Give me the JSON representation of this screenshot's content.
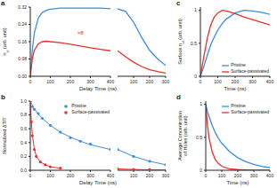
{
  "chart_data": [
    {
      "panel_label": "a",
      "type": "line",
      "ylabel": [
        [
          {
            "text": "n"
          },
          {
            "text": "cl",
            "sub": true
          },
          {
            "text": " (arb. unit)"
          }
        ]
      ],
      "xlabel": "Delay Time (ns)",
      "ylim": [
        0,
        0.32
      ],
      "yticks": [
        {
          "value": 0,
          "label": "0.00"
        },
        {
          "value": 0.08,
          "label": "0.08"
        },
        {
          "value": 0.16,
          "label": "0.16"
        },
        {
          "value": 0.24,
          "label": "0.24"
        },
        {
          "value": 0.32,
          "label": "0.32"
        }
      ],
      "segments": [
        {
          "xlim": [
            0,
            400
          ],
          "xticks": [
            0,
            100,
            200,
            300,
            400
          ]
        },
        {
          "xlim": [
            0,
            300
          ],
          "xticks": [
            100,
            200,
            300
          ]
        }
      ],
      "series": [
        {
          "name": "Pristine",
          "color": "#3b8ee0",
          "segments": [
            {
              "x": [
                0,
                10,
                20,
                40,
                60,
                80,
                100,
                150,
                200,
                250,
                300,
                350,
                400
              ],
              "values": [
                0,
                0.12,
                0.2,
                0.27,
                0.295,
                0.305,
                0.31,
                0.315,
                0.315,
                0.315,
                0.315,
                0.315,
                0.312
              ]
            },
            {
              "x": [
                0,
                50,
                100,
                150,
                200,
                250,
                300
              ],
              "values": [
                0.312,
                0.3,
                0.25,
                0.18,
                0.12,
                0.08,
                0.05
              ]
            }
          ]
        },
        {
          "name": "Surface-passivated",
          "color": "#e8312a",
          "segments": [
            {
              "x": [
                0,
                10,
                20,
                40,
                60,
                80,
                100,
                150,
                200,
                250,
                300,
                350,
                400
              ],
              "values": [
                0,
                0.08,
                0.12,
                0.15,
                0.16,
                0.162,
                0.16,
                0.155,
                0.148,
                0.14,
                0.132,
                0.125,
                0.118
              ]
            },
            {
              "x": [
                0,
                50,
                100,
                150,
                200,
                250,
                300
              ],
              "values": [
                0.118,
                0.09,
                0.065,
                0.045,
                0.03,
                0.022,
                0.015
              ]
            }
          ]
        }
      ],
      "annotations": [
        {
          "text": "×8",
          "x": 250,
          "y": 0.2,
          "color": "#e8312a"
        }
      ]
    },
    {
      "panel_label": "b",
      "type": "scatter",
      "ylabel": [
        [
          {
            "text": "Normalized ΔT/T"
          }
        ]
      ],
      "xlabel": "Delay Time (ns)",
      "ylim": [
        0,
        1
      ],
      "yticks": [
        {
          "value": 0,
          "label": "0.0"
        },
        {
          "value": 0.2,
          "label": "0.2"
        },
        {
          "value": 0.4,
          "label": "0.4"
        },
        {
          "value": 0.6,
          "label": "0.6"
        },
        {
          "value": 0.8,
          "label": "0.8"
        },
        {
          "value": 1,
          "label": "1.0"
        }
      ],
      "segments": [
        {
          "xlim": [
            0,
            400
          ],
          "xticks": [
            0,
            100,
            200,
            300,
            400
          ]
        },
        {
          "xlim": [
            0,
            300
          ],
          "xticks": [
            100,
            200,
            300
          ]
        }
      ],
      "legend": "upper right",
      "series": [
        {
          "name": "Pristine",
          "color": "#3b8ee0",
          "marker": "circle",
          "segments": [
            {
              "x": [
                0,
                10,
                20,
                40,
                60,
                100,
                150,
                200,
                250,
                300,
                400
              ],
              "values": [
                1,
                0.92,
                0.88,
                0.82,
                0.75,
                0.65,
                0.55,
                0.47,
                0.42,
                0.38,
                0.3
              ],
              "fit": [
                1,
                0.94,
                0.89,
                0.81,
                0.75,
                0.65,
                0.55,
                0.48,
                0.42,
                0.37,
                0.3
              ]
            },
            {
              "x": [
                0,
                100,
                200,
                300
              ],
              "values": [
                0.3,
                0.2,
                0.13,
                0.08
              ],
              "fit": [
                0.3,
                0.2,
                0.13,
                0.08
              ]
            }
          ]
        },
        {
          "name": "Surface-passivated",
          "color": "#e8312a",
          "marker": "circle",
          "segments": [
            {
              "x": [
                0,
                5,
                10,
                20,
                30,
                50,
                75,
                100,
                150
              ],
              "values": [
                1,
                0.7,
                0.5,
                0.3,
                0.2,
                0.12,
                0.08,
                0.05,
                0.03
              ],
              "fit": [
                1,
                0.72,
                0.52,
                0.31,
                0.2,
                0.12,
                0.08,
                0.05,
                0.03
              ]
            },
            {
              "x": [
                0,
                100,
                200,
                300
              ],
              "values": [
                0.02,
                0.01,
                0.01,
                0
              ],
              "fit": [
                0.02,
                0.012,
                0.006,
                0.003
              ]
            }
          ]
        }
      ]
    },
    {
      "panel_label": "c",
      "type": "line",
      "ylabel": [
        [
          {
            "text": "Surface n"
          },
          {
            "text": "cl",
            "sub": true
          },
          {
            "text": " (arb. unit)"
          }
        ]
      ],
      "xlabel": "Time (ns)",
      "ylim": [
        0,
        1.05
      ],
      "yticks": [
        0,
        0.5,
        1
      ],
      "xlim": [
        0,
        400
      ],
      "xticks": [
        0,
        100,
        200,
        300,
        400
      ],
      "legend": "lower right",
      "series": [
        {
          "name": "Pristine",
          "color": "#3b8ee0",
          "x": [
            0,
            20,
            40,
            60,
            80,
            100,
            125,
            150,
            200,
            250,
            300,
            350,
            400
          ],
          "values": [
            0,
            0.15,
            0.32,
            0.48,
            0.6,
            0.7,
            0.8,
            0.87,
            0.96,
            1,
            0.99,
            0.97,
            0.94
          ]
        },
        {
          "name": "Surface-passivated",
          "color": "#e8312a",
          "x": [
            0,
            20,
            40,
            60,
            80,
            100,
            125,
            150,
            200,
            250,
            300,
            350,
            400
          ],
          "values": [
            0,
            0.3,
            0.58,
            0.78,
            0.9,
            0.96,
            1,
            0.99,
            0.95,
            0.9,
            0.86,
            0.82,
            0.78
          ]
        }
      ]
    },
    {
      "panel_label": "d",
      "type": "line",
      "ylabel": [
        [
          {
            "text": "Average Concentration"
          }
        ],
        [
          {
            "text": "of Holes (arb. unit)"
          }
        ]
      ],
      "xlabel": "Time (ns)",
      "ylim": [
        0,
        1.05
      ],
      "yticks": [
        0,
        0.5,
        1
      ],
      "xlim": [
        0,
        400
      ],
      "xticks": [
        0,
        100,
        200,
        300,
        400
      ],
      "legend": "upper right",
      "series": [
        {
          "name": "Pristine",
          "color": "#3b8ee0",
          "x": [
            0,
            10,
            20,
            40,
            60,
            80,
            100,
            150,
            200,
            250,
            300,
            350,
            400
          ],
          "values": [
            1,
            0.9,
            0.82,
            0.68,
            0.57,
            0.48,
            0.41,
            0.28,
            0.19,
            0.13,
            0.09,
            0.06,
            0.04
          ]
        },
        {
          "name": "Surface-passivated",
          "color": "#e8312a",
          "x": [
            0,
            10,
            20,
            40,
            60,
            80,
            100,
            150,
            200,
            250,
            300,
            350,
            400
          ],
          "values": [
            1,
            0.7,
            0.5,
            0.28,
            0.16,
            0.1,
            0.06,
            0.02,
            0.01,
            0.005,
            0,
            0,
            0
          ]
        }
      ]
    }
  ]
}
